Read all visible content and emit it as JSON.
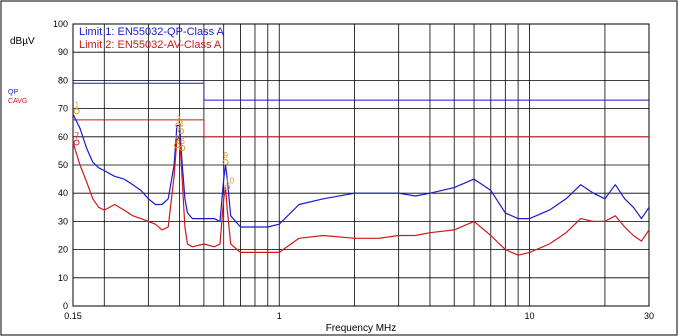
{
  "chart_data": {
    "type": "line",
    "title": "",
    "ylabel": "dBµV",
    "xlabel": "Frequency MHz",
    "xscale": "log",
    "xlim": [
      0.15,
      30
    ],
    "ylim": [
      0,
      100
    ],
    "grid": true,
    "legend_placement": "top-left",
    "x_tick_labels": [
      {
        "value": 0.15,
        "label": "0.15"
      },
      {
        "value": 1,
        "label": "1"
      },
      {
        "value": 10,
        "label": "10"
      },
      {
        "value": 30,
        "label": "30"
      }
    ],
    "y_ticks": [
      0,
      10,
      20,
      30,
      40,
      50,
      60,
      70,
      80,
      90,
      100
    ],
    "side_labels": [
      {
        "text": "QP",
        "color": "#1a1acc"
      },
      {
        "text": "CAVG",
        "color": "#cc1a1a"
      }
    ],
    "limits": [
      {
        "name": "Limit 1: EN55032-QP-Class A",
        "color": "#1a1acc",
        "segments": [
          {
            "x": [
              0.15,
              0.5
            ],
            "y": 79
          },
          {
            "x": [
              0.5,
              30
            ],
            "y": 73
          }
        ]
      },
      {
        "name": "Limit 2: EN55032-AV-Class A",
        "color": "#cc1a1a",
        "segments": [
          {
            "x": [
              0.15,
              0.5
            ],
            "y": 66
          },
          {
            "x": [
              0.5,
              30
            ],
            "y": 60
          }
        ]
      }
    ],
    "series": [
      {
        "color": "#1a1acc",
        "x": [
          0.15,
          0.16,
          0.17,
          0.18,
          0.19,
          0.2,
          0.22,
          0.24,
          0.26,
          0.28,
          0.3,
          0.32,
          0.34,
          0.36,
          0.38,
          0.39,
          0.4,
          0.41,
          0.42,
          0.43,
          0.45,
          0.5,
          0.55,
          0.58,
          0.6,
          0.61,
          0.62,
          0.64,
          0.7,
          0.75,
          0.8,
          0.9,
          1.0,
          1.2,
          1.5,
          2.0,
          2.5,
          3.0,
          3.5,
          4.0,
          5.0,
          6.0,
          7.0,
          8.0,
          9.0,
          10.0,
          12.0,
          14.0,
          16.0,
          18.0,
          20.0,
          22.0,
          24.0,
          26.0,
          28.0,
          30.0
        ],
        "y": [
          68,
          63,
          56,
          51,
          49,
          48,
          46,
          45,
          43,
          41,
          38,
          36,
          36,
          38,
          50,
          64,
          64,
          50,
          38,
          33,
          31,
          31,
          31,
          30,
          45,
          50,
          45,
          32,
          28,
          28,
          28,
          28,
          29,
          36,
          38,
          40,
          40,
          40,
          39,
          40,
          42,
          45,
          41,
          33,
          31,
          31,
          34,
          38,
          43,
          40,
          38,
          43,
          38,
          35,
          31,
          35
        ]
      },
      {
        "color": "#cc1a1a",
        "x": [
          0.15,
          0.16,
          0.17,
          0.18,
          0.19,
          0.2,
          0.22,
          0.24,
          0.26,
          0.28,
          0.3,
          0.32,
          0.34,
          0.36,
          0.38,
          0.39,
          0.4,
          0.41,
          0.42,
          0.43,
          0.45,
          0.5,
          0.55,
          0.58,
          0.6,
          0.61,
          0.62,
          0.64,
          0.7,
          0.75,
          0.8,
          0.9,
          1.0,
          1.2,
          1.5,
          2.0,
          2.5,
          3.0,
          3.5,
          4.0,
          5.0,
          6.0,
          7.0,
          8.0,
          9.0,
          10.0,
          12.0,
          14.0,
          16.0,
          18.0,
          20.0,
          22.0,
          24.0,
          26.0,
          28.0,
          30.0
        ],
        "y": [
          58,
          50,
          44,
          38,
          35,
          34,
          36,
          34,
          32,
          31,
          30,
          29,
          27,
          28,
          46,
          59,
          60,
          44,
          28,
          22,
          21,
          22,
          21,
          22,
          38,
          42,
          34,
          22,
          19,
          19,
          19,
          19,
          19,
          24,
          25,
          24,
          24,
          25,
          25,
          26,
          27,
          30,
          25,
          20,
          18,
          19,
          22,
          26,
          31,
          30,
          30,
          32,
          28,
          25,
          23,
          27
        ]
      }
    ],
    "markers": [
      {
        "label": "1",
        "x": 0.155,
        "y": 69,
        "color": "#d49a2a"
      },
      {
        "label": "7",
        "x": 0.155,
        "y": 58,
        "color": "#cc1a1a"
      },
      {
        "label": "3",
        "x": 0.395,
        "y": 64,
        "color": "#d49a2a"
      },
      {
        "label": "4",
        "x": 0.405,
        "y": 62,
        "color": "#d49a2a"
      },
      {
        "label": "5",
        "x": 0.39,
        "y": 57,
        "color": "#d49a2a"
      },
      {
        "label": "6",
        "x": 0.41,
        "y": 56,
        "color": "#d49a2a"
      },
      {
        "label": "9",
        "x": 0.61,
        "y": 51,
        "color": "#d49a2a"
      },
      {
        "label": "10",
        "x": 0.62,
        "y": 42,
        "color": "#d49a2a"
      }
    ]
  }
}
